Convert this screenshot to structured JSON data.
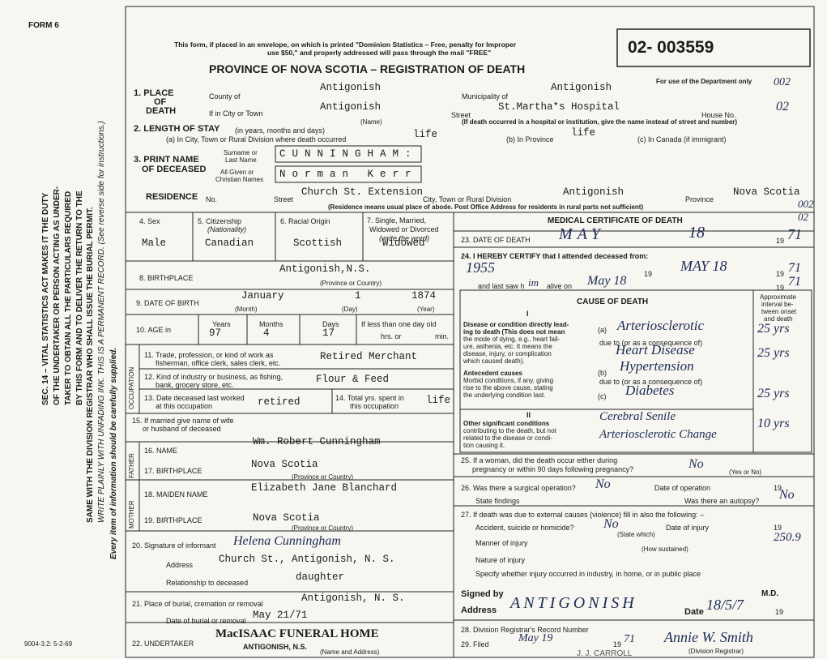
{
  "header": {
    "form": "FORM 6",
    "notice": [
      "This form, if placed in an envelope, on which is printed \"Dominion Statistics – Free, penalty for Improper",
      "use $50,\" and properly addressed will pass through the mail \"FREE\""
    ],
    "title": "PROVINCE OF NOVA SCOTIA – REGISTRATION OF DEATH",
    "registration_number": "02- 003559",
    "department_note": "For use of the Department only",
    "department_code": "002"
  },
  "side": {
    "lines": [
      "SEC. 14 – VITAL STATISTICS ACT MAKES IT THE DUTY",
      "OF THE UNDERTAKER OR PERSON ACTING AS UNDER-",
      "TAKER TO OBTAIN ALL THE PARTICULARS REQUIRED",
      "BY THIS FORM AND TO DELIVER THE RETURN TO THE",
      "SAME WITH THE DIVISION REGISTRAR WHO SHALL ISSUE THE BURIAL PERMIT.",
      "WRITE PLAINLY WITH UNFADING INK. THIS IS A PERMANENT RECORD. (See reverse side for instructions.)"
    ],
    "note": "Every item of information should be carefully supplied.",
    "form_code": "9004-3.2: 5-2-69"
  },
  "place": {
    "label": [
      "1. PLACE",
      "OF",
      "DEATH"
    ],
    "county_label": "County of",
    "county": "Antigonish",
    "municipality_label": "Municipality of",
    "municipality": "Antigonish",
    "city_label": "If in City or Town",
    "city": "Antigonish",
    "name_caption": "(Name)",
    "street_label": "Street",
    "street": "St.Martha*s Hospital",
    "house_label": "House No.",
    "house": "02",
    "note": "(If death occurred in a hospital or institution, give the name instead of street and number)"
  },
  "stay": {
    "label": "2. LENGTH OF STAY",
    "label_note": "(in years, months and days)",
    "a_label": "(a) In City, Town or Rural Division where death occurred",
    "a": "life",
    "b_label": "(b) In Province",
    "b": "life",
    "c_label": "(c) In Canada (if immigrant)"
  },
  "name": {
    "label": [
      "3. PRINT NAME",
      "OF DECEASED"
    ],
    "surname_label": [
      "Surname or",
      "Last Name"
    ],
    "surname": "CUNNINGHAM:",
    "given_label": [
      "All Given or",
      "Christian Names"
    ],
    "given": "Norman Kerr"
  },
  "residence": {
    "label": "RESIDENCE",
    "no_label": "No.",
    "street_label": "Street",
    "street": "Church St. Extension",
    "city_label": "City, Town or Rural Division",
    "city": "Antigonish",
    "province_label": "Province",
    "province": "Nova Scotia",
    "code": "002",
    "note": "(Residence means usual place of abode. Post Office Address for residents in rural parts not sufficient)"
  },
  "personal": {
    "sex_label": "4. Sex",
    "sex": "Male",
    "citizenship_label": "5. Citizenship",
    "citizenship_note": "(Nationality)",
    "citizenship": "Canadian",
    "racial_label": "6. Racial Origin",
    "racial": "Scottish",
    "marital_label": [
      "7. Single, Married,",
      "Widowed or Divorced",
      "(write the word)"
    ],
    "marital": "Widowed",
    "birthplace_label": "8. BIRTHPLACE",
    "birthplace": "Antigonish,N.S.",
    "birthplace_caption": "(Province or Country)"
  },
  "birth": {
    "label": "9. DATE OF BIRTH",
    "month": "January",
    "day": "1",
    "year": "1874",
    "month_caption": "(Month)",
    "day_caption": "(Day)",
    "year_caption": "(Year)"
  },
  "age": {
    "label": "10. AGE in",
    "years_label": "Years",
    "years": "97",
    "months_label": "Months",
    "months": "4",
    "days_label": "Days",
    "days": "17",
    "infant_label": [
      "If less than one day old",
      "hrs. or",
      "min."
    ]
  },
  "occupation": {
    "side": "OCCUPATION",
    "trade_label": [
      "11. Trade, profession, or kind of work as",
      "fisherman, office clerk, sales clerk, etc."
    ],
    "trade": "Retired Merchant",
    "industry_label": [
      "12. Kind of industry or business, as fishing,",
      "bank, grocery store, etc."
    ],
    "industry": "Flour & Feed",
    "last_worked_label": [
      "13. Date deceased last worked",
      "at this occupation"
    ],
    "last_worked": "retired",
    "years_spent_label": [
      "14. Total yrs. spent in",
      "this occupation"
    ],
    "years_spent": "life"
  },
  "spouse": {
    "label": [
      "15. If married give name of wife",
      "or husband of deceased"
    ]
  },
  "father": {
    "side": "FATHER",
    "name_label": "16. NAME",
    "name": "Wm. Robert Cunningham",
    "birthplace_label": "17. BIRTHPLACE",
    "birthplace": "Nova Scotia",
    "caption": "(Province or Country)"
  },
  "mother": {
    "side": "MOTHER",
    "maiden_label": "18. MAIDEN NAME",
    "maiden": "Elizabeth Jane Blanchard",
    "birthplace_label": "19. BIRTHPLACE",
    "birthplace": "Nova Scotia",
    "caption": "(Province or Country)"
  },
  "informant": {
    "signature_label": "20. Signature of informant",
    "signature": "Helena Cunningham",
    "address_label": "Address",
    "address": "Church St., Antigonish, N. S.",
    "relationship_label": "Relationship to deceased",
    "relationship": "daughter"
  },
  "burial": {
    "place_label": "21. Place of burial, cremation or removal",
    "place": "Antigonish, N. S.",
    "date_label": "Date of burial or removal",
    "date": "May 21/71"
  },
  "undertaker": {
    "label": "22. UNDERTAKER",
    "name": "MacISAAC FUNERAL HOME",
    "address": "ANTIGONISH, N.S.",
    "caption": "(Name and Address)"
  },
  "medical": {
    "title": "MEDICAL CERTIFICATE OF DEATH",
    "code": "02",
    "death_date_label": "23. DATE OF DEATH",
    "month": "MAY",
    "day": "18",
    "century": "19",
    "year": "71",
    "attended_label": "24. I HEREBY CERTIFY that I attended deceased from:",
    "attended_from": "1955",
    "attended_to": "MAY 18",
    "attended_to_year": "71",
    "last_saw_label": "and last saw h",
    "last_saw_mark": "im",
    "alive_label": "alive on",
    "last_seen": "May 18",
    "last_seen_year": "71"
  },
  "cause": {
    "title": "CAUSE OF DEATH",
    "interval_header": [
      "Approximate",
      "interval be-",
      "tween onset",
      "and death"
    ],
    "part1": "I",
    "immediate_label": [
      "Disease or condition directly lead-",
      "ing to death (This does not mean",
      "the mode of dying, e.g., heart fail-",
      "ure, asthenia, etc. It means the",
      "disease, injury, or complication",
      "which caused death)."
    ],
    "a_mark": "(a)",
    "a": "Arteriosclerotic",
    "a_interval": "25 yrs",
    "due_label": "due to (or as a consequence of)",
    "a2": "Heart Disease",
    "a2_interval": "25 yrs",
    "antecedent_label": [
      "Antecedent causes",
      "Morbid conditions, if any, giving",
      "rise to the above cause, stating",
      "the underlying condition last."
    ],
    "b_mark": "(b)",
    "b": "Hypertension",
    "c_mark": "(c)",
    "c": "Diabetes",
    "c_interval": "25 yrs",
    "part2": "II",
    "other_label": [
      "Other significant conditions",
      "contributing to the death, but not",
      "related to the disease or condi-",
      "tion causing it."
    ],
    "other": [
      "Cerebral Senile",
      "Arteriosclerotic Change"
    ],
    "other_interval": "10 yrs"
  },
  "woman": {
    "label": [
      "25. If a woman, did the death occur either during",
      "pregnancy or within 90 days following pregnancy?"
    ],
    "answer": "No",
    "caption": "(Yes or No)"
  },
  "surgery": {
    "label": "26. Was there a surgical operation?",
    "answer": "No",
    "date_label": "Date of operation",
    "century": "19",
    "findings_label": "State findings",
    "autopsy_label": "Was there an autopsy?",
    "autopsy": "No"
  },
  "external": {
    "label": "27. If death was due to external causes (violence) fill in also the following: –",
    "accident_label": "Accident, suicide or homicide?",
    "accident": "No",
    "state_caption": "(State which)",
    "date_label": "Date of injury",
    "century": "19",
    "code": "250.9",
    "manner_label": "Manner of injury",
    "sustained_caption": "(How sustained)",
    "nature_label": "Nature of injury",
    "specify_label": "Specify whether injury occurred in industry, in home, or in public place"
  },
  "signature": {
    "signed_label": "Signed by",
    "md": "M.D.",
    "address_label": "Address",
    "address": "ANTIGONISH",
    "date_label": "Date",
    "date": "18/5/7",
    "century": "19"
  },
  "registrar": {
    "record_label": "28. Division Registrar's Record Number",
    "filed_label": "29. Filed",
    "filed": "May 19",
    "century": "19",
    "filed_year": "71",
    "registrar": "Annie W. Smith",
    "caption": "(Division Registrar)",
    "stamp": "J. J. CARROLL"
  }
}
